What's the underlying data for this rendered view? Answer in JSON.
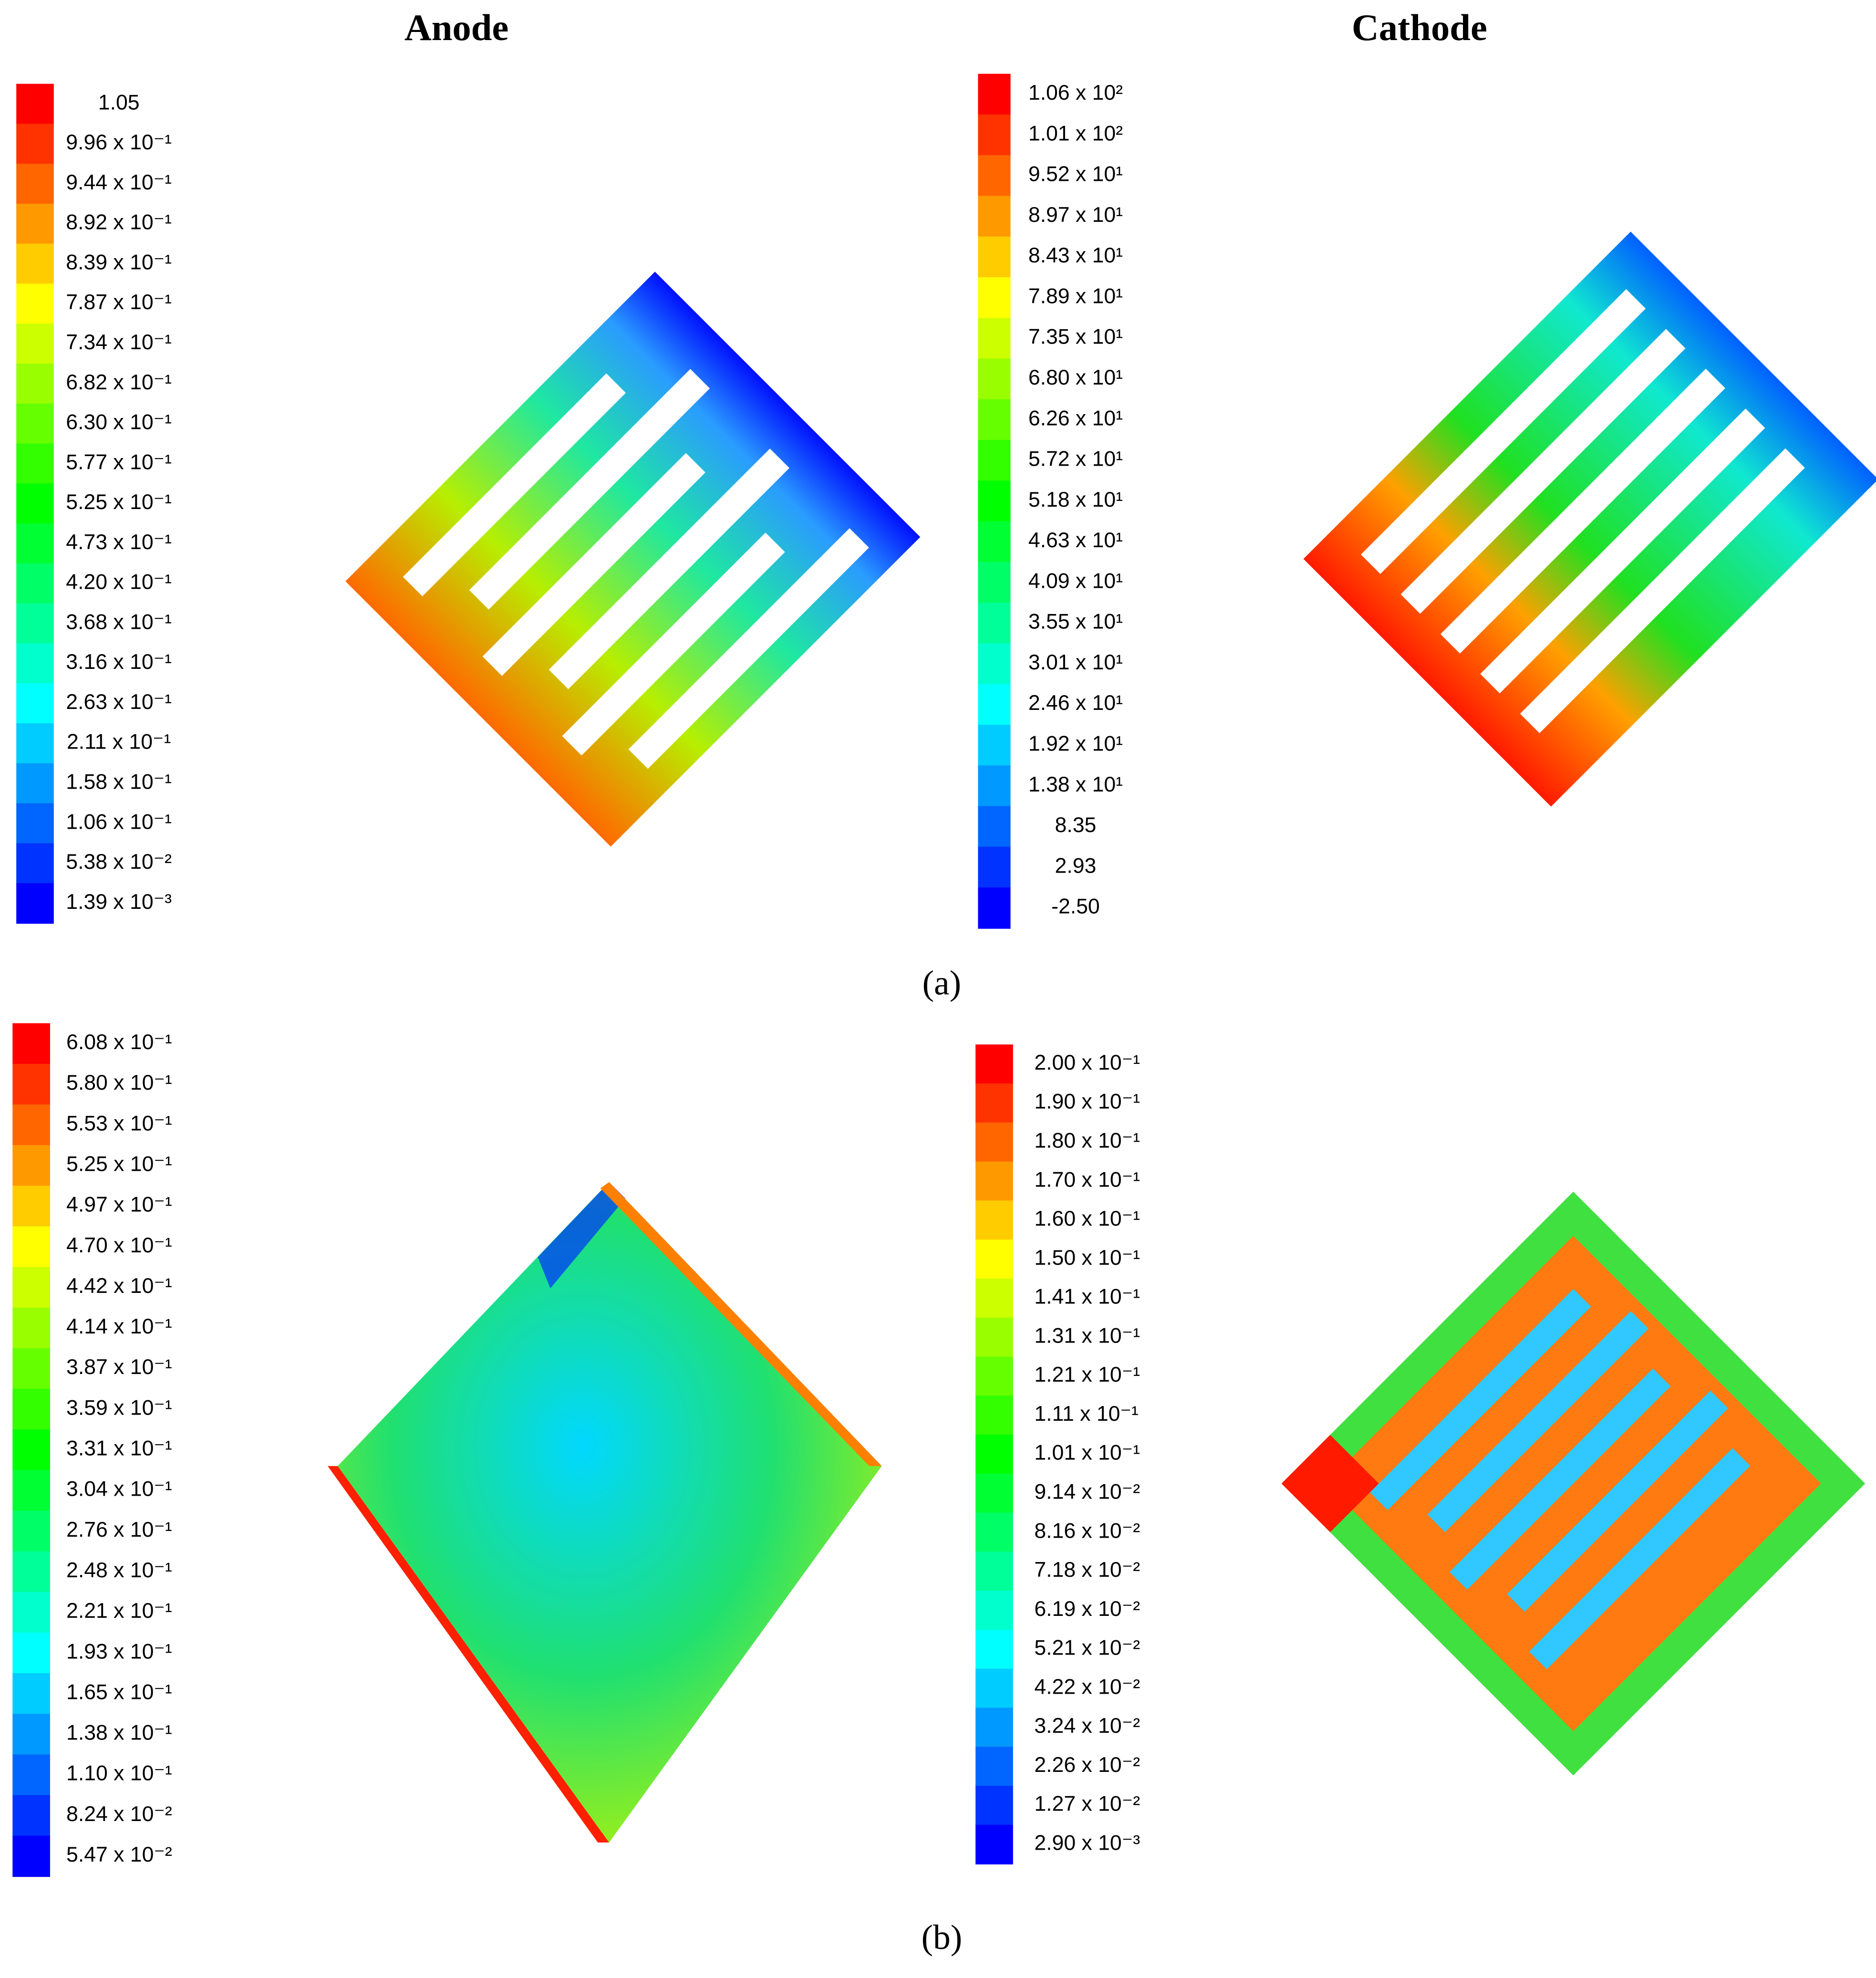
{
  "headers": [
    "Anode",
    "Cathode"
  ],
  "panels": [
    {
      "caption": "(a)",
      "legends": [
        {
          "labels": [
            "1.05",
            "9.96 x 10⁻¹",
            "9.44 x 10⁻¹",
            "8.92 x 10⁻¹",
            "8.39 x 10⁻¹",
            "7.87 x 10⁻¹",
            "7.34 x 10⁻¹",
            "6.82 x 10⁻¹",
            "6.30 x 10⁻¹",
            "5.77 x 10⁻¹",
            "5.25 x 10⁻¹",
            "4.73 x 10⁻¹",
            "4.20 x 10⁻¹",
            "3.68 x 10⁻¹",
            "3.16 x 10⁻¹",
            "2.63 x 10⁻¹",
            "2.11 x 10⁻¹",
            "1.58 x 10⁻¹",
            "1.06 x 10⁻¹",
            "5.38 x 10⁻²",
            "1.39 x 10⁻³"
          ]
        },
        {
          "labels": [
            "1.06 x 10²",
            "1.01 x 10²",
            "9.52 x 10¹",
            "8.97 x 10¹",
            "8.43 x 10¹",
            "7.89 x 10¹",
            "7.35 x 10¹",
            "6.80 x 10¹",
            "6.26 x 10¹",
            "5.72 x 10¹",
            "5.18 x 10¹",
            "4.63 x 10¹",
            "4.09 x 10¹",
            "3.55 x 10¹",
            "3.01 x 10¹",
            "2.46 x 10¹",
            "1.92 x 10¹",
            "1.38 x 10¹",
            "8.35",
            "2.93",
            "-2.50"
          ]
        }
      ]
    },
    {
      "caption": "(b)",
      "legends": [
        {
          "labels": [
            "6.08 x 10⁻¹",
            "5.80 x 10⁻¹",
            "5.53 x 10⁻¹",
            "5.25 x 10⁻¹",
            "4.97 x 10⁻¹",
            "4.70 x 10⁻¹",
            "4.42 x 10⁻¹",
            "4.14 x 10⁻¹",
            "3.87 x 10⁻¹",
            "3.59 x 10⁻¹",
            "3.31 x 10⁻¹",
            "3.04 x 10⁻¹",
            "2.76 x 10⁻¹",
            "2.48 x 10⁻¹",
            "2.21 x 10⁻¹",
            "1.93 x 10⁻¹",
            "1.65 x 10⁻¹",
            "1.38 x 10⁻¹",
            "1.10 x 10⁻¹",
            "8.24 x 10⁻²",
            "5.47 x 10⁻²"
          ]
        },
        {
          "labels": [
            "2.00 x 10⁻¹",
            "1.90 x 10⁻¹",
            "1.80 x 10⁻¹",
            "1.70 x 10⁻¹",
            "1.60 x 10⁻¹",
            "1.50 x 10⁻¹",
            "1.41 x 10⁻¹",
            "1.31 x 10⁻¹",
            "1.21 x 10⁻¹",
            "1.11 x 10⁻¹",
            "1.01 x 10⁻¹",
            "9.14 x 10⁻²",
            "8.16 x 10⁻²",
            "7.18 x 10⁻²",
            "6.19 x 10⁻²",
            "5.21 x 10⁻²",
            "4.22 x 10⁻²",
            "3.24 x 10⁻²",
            "2.26 x 10⁻²",
            "1.27 x 10⁻²",
            "2.90 x 10⁻³"
          ]
        }
      ]
    }
  ]
}
